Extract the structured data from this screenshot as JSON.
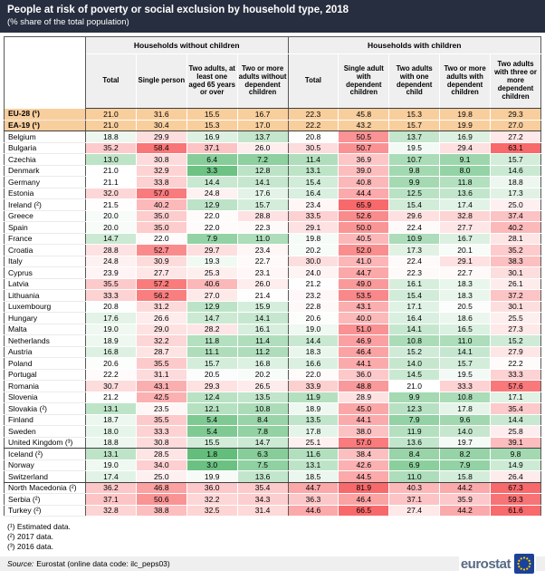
{
  "title": "People at risk of poverty or social exclusion by household type, 2018",
  "subtitle": "(% share of the total population)",
  "table": {
    "groups": [
      {
        "label": "Households without children",
        "span": 4
      },
      {
        "label": "Households with children",
        "span": 5
      }
    ],
    "columns": [
      "Total",
      "Single person",
      "Two adults, at least one aged 65 years or over",
      "Two or more adults without dependent children",
      "Total",
      "Single adult with dependent children",
      "Two adults with one dependent child",
      "Two or more adults with dependent children",
      "Two adults with three or more dependent children"
    ],
    "rows": [
      {
        "name": "EU-28 (¹)",
        "highlight": true,
        "values": [
          "21.0",
          "31.6",
          "15.5",
          "16.7",
          "22.3",
          "45.8",
          "15.3",
          "19.8",
          "29.3"
        ]
      },
      {
        "name": "EA-19 (¹)",
        "highlight": true,
        "sep": true,
        "values": [
          "21.0",
          "30.4",
          "15.3",
          "17.0",
          "22.2",
          "43.2",
          "15.7",
          "19.9",
          "27.0"
        ]
      },
      {
        "name": "Belgium",
        "values": [
          "18.8",
          "29.9",
          "16.9",
          "13.7",
          "20.8",
          "50.5",
          "13.7",
          "16.9",
          "27.2"
        ]
      },
      {
        "name": "Bulgaria",
        "values": [
          "35.2",
          "58.4",
          "37.1",
          "26.0",
          "30.5",
          "50.7",
          "19.5",
          "29.4",
          "63.1"
        ]
      },
      {
        "name": "Czechia",
        "values": [
          "13.0",
          "30.8",
          "6.4",
          "7.2",
          "11.4",
          "36.9",
          "10.7",
          "9.1",
          "15.7"
        ]
      },
      {
        "name": "Denmark",
        "values": [
          "21.0",
          "32.9",
          "3.3",
          "12.8",
          "13.1",
          "39.0",
          "9.8",
          "8.0",
          "14.6"
        ]
      },
      {
        "name": "Germany",
        "values": [
          "21.1",
          "33.8",
          "14.4",
          "14.1",
          "15.4",
          "40.8",
          "9.9",
          "11.8",
          "18.8"
        ]
      },
      {
        "name": "Estonia",
        "values": [
          "32.0",
          "57.0",
          "24.8",
          "17.6",
          "16.4",
          "44.4",
          "12.5",
          "13.6",
          "17.3"
        ]
      },
      {
        "name": "Ireland (²)",
        "values": [
          "21.5",
          "40.2",
          "12.9",
          "15.7",
          "23.4",
          "65.9",
          "15.4",
          "17.4",
          "25.0"
        ]
      },
      {
        "name": "Greece",
        "values": [
          "20.0",
          "35.0",
          "22.0",
          "28.8",
          "33.5",
          "52.6",
          "29.6",
          "32.8",
          "37.4"
        ]
      },
      {
        "name": "Spain",
        "values": [
          "20.0",
          "35.0",
          "22.0",
          "22.3",
          "29.1",
          "50.0",
          "22.4",
          "27.7",
          "40.2"
        ]
      },
      {
        "name": "France",
        "values": [
          "14.7",
          "22.0",
          "7.9",
          "11.0",
          "19.8",
          "40.5",
          "10.9",
          "16.7",
          "28.1"
        ]
      },
      {
        "name": "Croatia",
        "values": [
          "28.8",
          "52.7",
          "29.7",
          "23.4",
          "20.2",
          "52.0",
          "17.3",
          "20.1",
          "35.2"
        ]
      },
      {
        "name": "Italy",
        "values": [
          "24.8",
          "30.9",
          "19.3",
          "22.7",
          "30.0",
          "41.0",
          "22.4",
          "29.1",
          "38.3"
        ]
      },
      {
        "name": "Cyprus",
        "values": [
          "23.9",
          "27.7",
          "25.3",
          "23.1",
          "24.0",
          "44.7",
          "22.3",
          "22.7",
          "30.1"
        ]
      },
      {
        "name": "Latvia",
        "values": [
          "35.5",
          "57.2",
          "40.6",
          "26.0",
          "21.2",
          "49.0",
          "16.1",
          "18.3",
          "26.1"
        ]
      },
      {
        "name": "Lithuania",
        "values": [
          "33.3",
          "56.2",
          "27.0",
          "21.4",
          "23.2",
          "53.5",
          "15.4",
          "18.3",
          "37.2"
        ]
      },
      {
        "name": "Luxembourg",
        "values": [
          "20.8",
          "31.2",
          "12.9",
          "15.9",
          "22.8",
          "43.1",
          "17.1",
          "20.5",
          "30.1"
        ]
      },
      {
        "name": "Hungary",
        "values": [
          "17.6",
          "26.6",
          "14.7",
          "14.1",
          "20.6",
          "40.0",
          "16.4",
          "18.6",
          "25.5"
        ]
      },
      {
        "name": "Malta",
        "values": [
          "19.0",
          "29.0",
          "28.2",
          "16.1",
          "19.0",
          "51.0",
          "14.1",
          "16.5",
          "27.3"
        ]
      },
      {
        "name": "Netherlands",
        "values": [
          "18.9",
          "32.2",
          "11.8",
          "11.4",
          "14.4",
          "46.9",
          "10.8",
          "11.0",
          "15.2"
        ]
      },
      {
        "name": "Austria",
        "values": [
          "16.8",
          "28.7",
          "11.1",
          "11.2",
          "18.3",
          "46.4",
          "15.2",
          "14.1",
          "27.9"
        ]
      },
      {
        "name": "Poland",
        "values": [
          "20.6",
          "35.5",
          "15.7",
          "16.8",
          "16.6",
          "44.1",
          "14.0",
          "15.7",
          "22.2"
        ]
      },
      {
        "name": "Portugal",
        "values": [
          "22.2",
          "31.1",
          "20.5",
          "20.2",
          "22.0",
          "36.0",
          "14.5",
          "19.5",
          "33.3"
        ]
      },
      {
        "name": "Romania",
        "values": [
          "30.7",
          "43.1",
          "29.3",
          "26.5",
          "33.9",
          "48.8",
          "21.0",
          "33.3",
          "57.6"
        ]
      },
      {
        "name": "Slovenia",
        "values": [
          "21.2",
          "42.5",
          "12.4",
          "13.5",
          "11.9",
          "28.9",
          "9.9",
          "10.8",
          "17.1"
        ]
      },
      {
        "name": "Slovakia (²)",
        "values": [
          "13.1",
          "23.5",
          "12.1",
          "10.8",
          "18.9",
          "45.0",
          "12.3",
          "17.8",
          "35.4"
        ]
      },
      {
        "name": "Finland",
        "values": [
          "18.7",
          "35.5",
          "5.4",
          "8.4",
          "13.5",
          "44.1",
          "7.9",
          "9.6",
          "14.4"
        ]
      },
      {
        "name": "Sweden",
        "values": [
          "18.0",
          "33.3",
          "5.4",
          "7.8",
          "17.8",
          "38.0",
          "11.9",
          "14.0",
          "25.8"
        ]
      },
      {
        "name": "United Kingdom (³)",
        "sep": true,
        "values": [
          "18.8",
          "30.8",
          "15.5",
          "14.7",
          "25.1",
          "57.0",
          "13.6",
          "19.7",
          "39.1"
        ]
      },
      {
        "name": "Iceland (²)",
        "values": [
          "13.1",
          "28.5",
          "1.8",
          "6.3",
          "11.6",
          "38.4",
          "8.4",
          "8.2",
          "9.8"
        ]
      },
      {
        "name": "Norway",
        "values": [
          "19.0",
          "34.0",
          "3.0",
          "7.5",
          "13.1",
          "42.6",
          "6.9",
          "7.9",
          "14.9"
        ]
      },
      {
        "name": "Switzerland",
        "sep": true,
        "values": [
          "17.4",
          "25.0",
          "19.9",
          "13.6",
          "18.5",
          "44.5",
          "11.0",
          "15.8",
          "26.4"
        ]
      },
      {
        "name": "North Macedonia (²)",
        "values": [
          "36.2",
          "46.8",
          "36.0",
          "35.4",
          "44.7",
          "81.9",
          "40.3",
          "44.2",
          "67.3"
        ]
      },
      {
        "name": "Serbia (²)",
        "values": [
          "37.1",
          "50.6",
          "32.2",
          "34.3",
          "36.3",
          "46.4",
          "37.1",
          "35.9",
          "59.3"
        ]
      },
      {
        "name": "Turkey (²)",
        "values": [
          "32.8",
          "38.8",
          "32.5",
          "31.4",
          "44.6",
          "66.5",
          "27.4",
          "44.2",
          "61.6"
        ]
      }
    ]
  },
  "footnotes": [
    "(¹) Estimated data.",
    "(²) 2017 data.",
    "(³) 2016 data."
  ],
  "source": {
    "label": "Source:",
    "text": "Eurostat (online data code: ilc_peps03)"
  },
  "logo": {
    "text": "eurostat",
    "flag_icon": "eu-flag-icon: blue square with circle of yellow stars"
  },
  "colors": {
    "title_bg": "#272E3F",
    "title_text": "#FFFFFF",
    "header_bg": "#EFEFEF",
    "highlight_row": "#F9CE9D",
    "scale_low": "#63BE7B",
    "scale_mid": "#FFFFFF",
    "scale_high": "#F8696B",
    "scale_min": 2,
    "scale_midpoint": 21,
    "scale_max": 62
  }
}
